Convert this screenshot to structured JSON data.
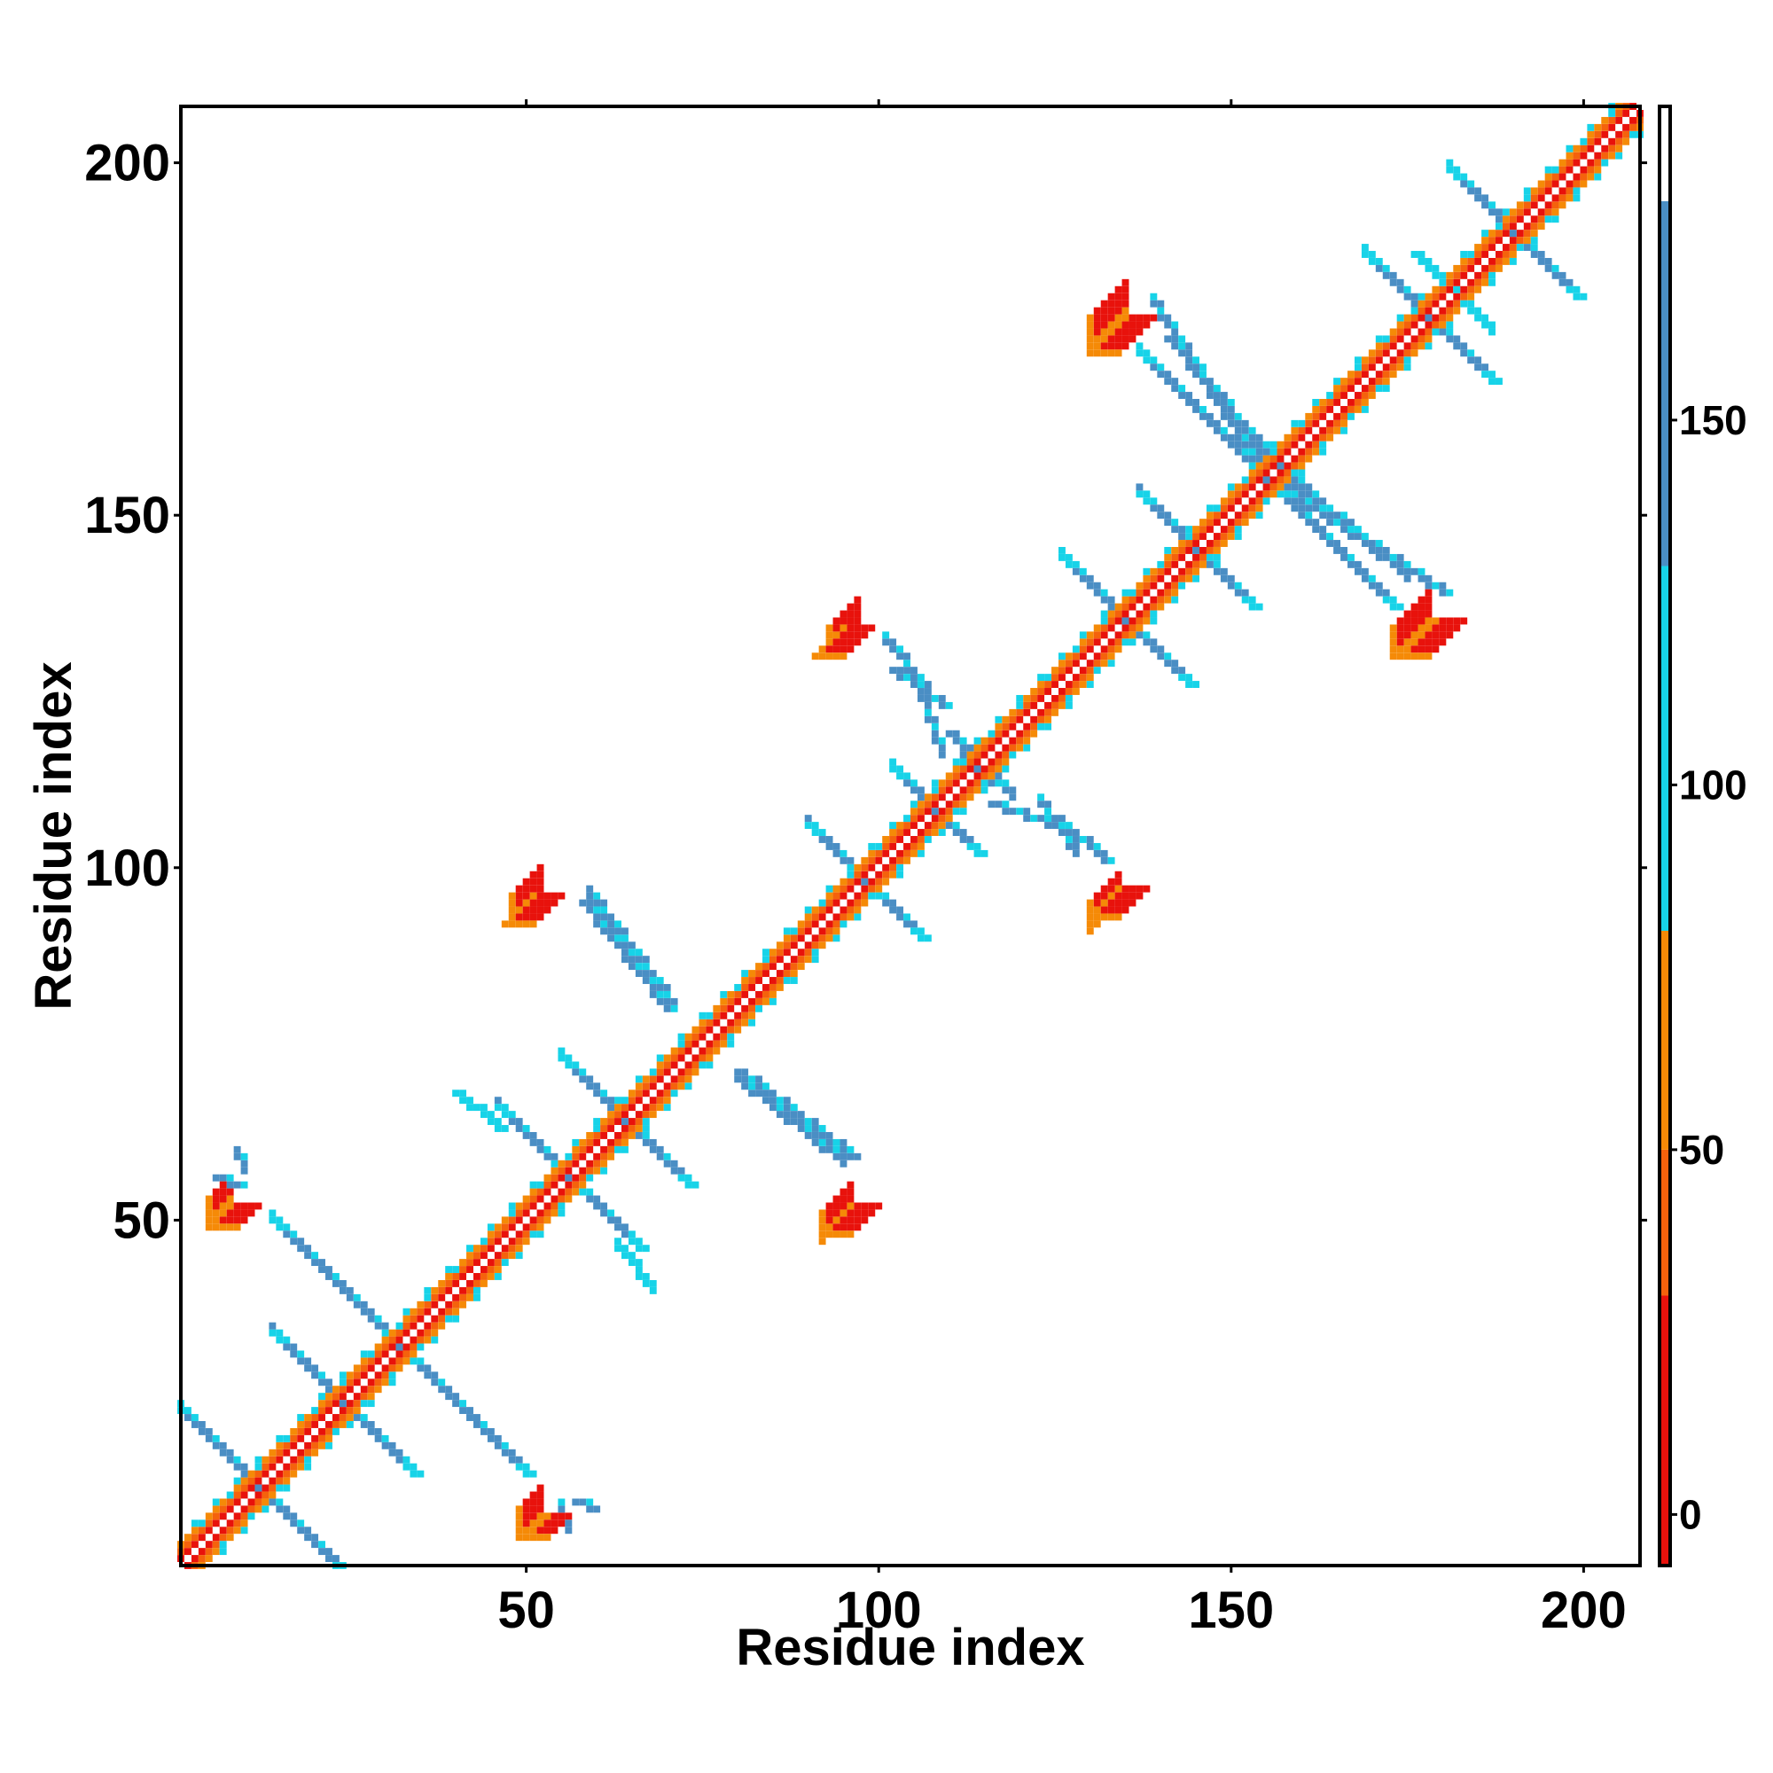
{
  "chart_data": {
    "type": "heatmap",
    "title": "",
    "xlabel": "Residue index",
    "ylabel": "Residue index",
    "xlim": [
      1,
      208
    ],
    "ylim": [
      1,
      208
    ],
    "xticks": [
      50,
      100,
      150,
      200
    ],
    "yticks": [
      50,
      100,
      150,
      200
    ],
    "grid": false,
    "colorbar": {
      "ticks": [
        0,
        50,
        100,
        150
      ],
      "range": [
        -7,
        193
      ],
      "bands": [
        {
          "from": -7,
          "to": 30,
          "color": "#e8120c"
        },
        {
          "from": 30,
          "to": 50,
          "color": "#f5620c"
        },
        {
          "from": 50,
          "to": 80,
          "color": "#f58a07"
        },
        {
          "from": 80,
          "to": 130,
          "color": "#17d3e8"
        },
        {
          "from": 130,
          "to": 180,
          "color": "#4a8ec4"
        },
        {
          "from": 180,
          "to": 193,
          "color": "#ffffff"
        }
      ]
    },
    "features": [
      {
        "kind": "diagonal",
        "x0": 1,
        "x1": 208
      },
      {
        "kind": "cross",
        "cx": 12,
        "cy": 12,
        "len": 12,
        "perp": true
      },
      {
        "kind": "cross",
        "cx": 24,
        "cy": 24,
        "len": 10,
        "perp": true
      },
      {
        "kind": "cross",
        "cx": 32,
        "cy": 32,
        "len": 18,
        "perp": true
      },
      {
        "kind": "cross",
        "cx": 56,
        "cy": 56,
        "len": 10,
        "perp": true
      },
      {
        "kind": "cross",
        "cx": 64,
        "cy": 64,
        "len": 9,
        "perp": true
      },
      {
        "kind": "cross",
        "cx": 98,
        "cy": 98,
        "len": 8,
        "perp": true
      },
      {
        "kind": "cross",
        "cx": 108,
        "cy": 108,
        "len": 6,
        "perp": true
      },
      {
        "kind": "cross",
        "cx": 135,
        "cy": 135,
        "len": 9,
        "perp": true
      },
      {
        "kind": "cross",
        "cx": 145,
        "cy": 145,
        "len": 8,
        "perp": true
      },
      {
        "kind": "cross",
        "cx": 155,
        "cy": 155,
        "len": 18,
        "perp": true
      },
      {
        "kind": "cross",
        "cx": 178,
        "cy": 178,
        "len": 9,
        "perp": true
      },
      {
        "kind": "cross",
        "cx": 190,
        "cy": 190,
        "len": 9,
        "perp": true
      },
      {
        "kind": "patch",
        "x": 5,
        "y": 49,
        "w": 5,
        "h": 4,
        "value": 5
      },
      {
        "kind": "patch",
        "x": 47,
        "y": 92,
        "w": 5,
        "h": 5,
        "value": 5
      },
      {
        "kind": "patch",
        "x": 92,
        "y": 48,
        "w": 5,
        "h": 5,
        "value": 5
      },
      {
        "kind": "patch",
        "x": 91,
        "y": 130,
        "w": 5,
        "h": 5,
        "value": 5
      },
      {
        "kind": "patch",
        "x": 130,
        "y": 93,
        "w": 5,
        "h": 5,
        "value": 5
      },
      {
        "kind": "patch",
        "x": 130,
        "y": 173,
        "w": 5,
        "h": 6,
        "value": 5
      },
      {
        "kind": "patch",
        "x": 174,
        "y": 130,
        "w": 5,
        "h": 6,
        "value": 5
      },
      {
        "kind": "patch",
        "x": 50,
        "y": 5,
        "w": 4,
        "h": 4,
        "value": 5
      },
      {
        "kind": "strip",
        "x0": 58,
        "y0": 95,
        "x1": 70,
        "y1": 80,
        "value": 150
      },
      {
        "kind": "strip",
        "x0": 80,
        "y0": 71,
        "x1": 96,
        "y1": 59,
        "value": 150
      },
      {
        "kind": "strip",
        "x0": 102,
        "y0": 128,
        "x1": 109,
        "y1": 123,
        "value": 150
      },
      {
        "kind": "strip",
        "x0": 110,
        "y0": 119,
        "x1": 116,
        "y1": 112,
        "value": 150
      },
      {
        "kind": "strip",
        "x0": 116,
        "y0": 109,
        "x1": 125,
        "y1": 106,
        "value": 150
      },
      {
        "kind": "strip",
        "x0": 125,
        "y0": 107,
        "x1": 132,
        "y1": 101,
        "value": 150
      },
      {
        "kind": "strip",
        "x0": 141,
        "y0": 175,
        "x1": 156,
        "y1": 157,
        "value": 150
      },
      {
        "kind": "strip",
        "x0": 157,
        "y0": 154,
        "x1": 180,
        "y1": 139,
        "value": 150
      },
      {
        "kind": "strip",
        "x0": 176,
        "y0": 187,
        "x1": 183,
        "y1": 181,
        "value": 110
      },
      {
        "kind": "strip",
        "x0": 40,
        "y0": 68,
        "x1": 46,
        "y1": 63,
        "value": 110
      },
      {
        "kind": "strip",
        "x0": 6,
        "y0": 56,
        "x1": 9,
        "y1": 55,
        "value": 150
      },
      {
        "kind": "strip",
        "x0": 57,
        "y0": 10,
        "x1": 59,
        "y1": 9,
        "value": 150
      }
    ]
  }
}
